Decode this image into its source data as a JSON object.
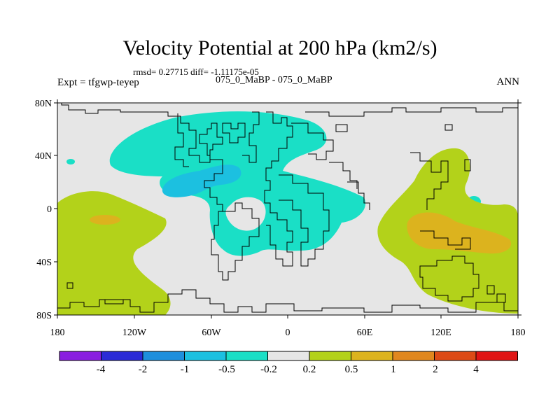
{
  "header": {
    "title": "Velocity Potential at 200 hPa (km2/s)",
    "stats": "rmsd= 0.27715 diff= -1.11175e-05",
    "expt": "Expt = tfgwp-teyep",
    "case": "075_0_MaBP - 075_0_MaBP",
    "season": "ANN"
  },
  "axes": {
    "lon_ticks": [
      "180",
      "120W",
      "60W",
      "0",
      "60E",
      "120E",
      "180"
    ],
    "lat_ticks": [
      "80N",
      "40N",
      "0",
      "40S",
      "80S"
    ]
  },
  "colorbar": {
    "colors": [
      "#8a1ee0",
      "#2b2bd6",
      "#1e8fdc",
      "#1cc0e0",
      "#1adfc6",
      "#e6e6e6",
      "#b3d21a",
      "#dcb31e",
      "#e0871e",
      "#dc4a16",
      "#e01414"
    ],
    "labels": [
      "-4",
      "-2",
      "-1",
      "-0.5",
      "-0.2",
      "0.2",
      "0.5",
      "1",
      "2",
      "4"
    ]
  },
  "palette": {
    "background": "#e6e6e6",
    "neg_light": "#1adfc6",
    "neg_mid": "#1cc0e0",
    "pos_light": "#b3d21a",
    "pos_mid": "#dcb31e"
  }
}
